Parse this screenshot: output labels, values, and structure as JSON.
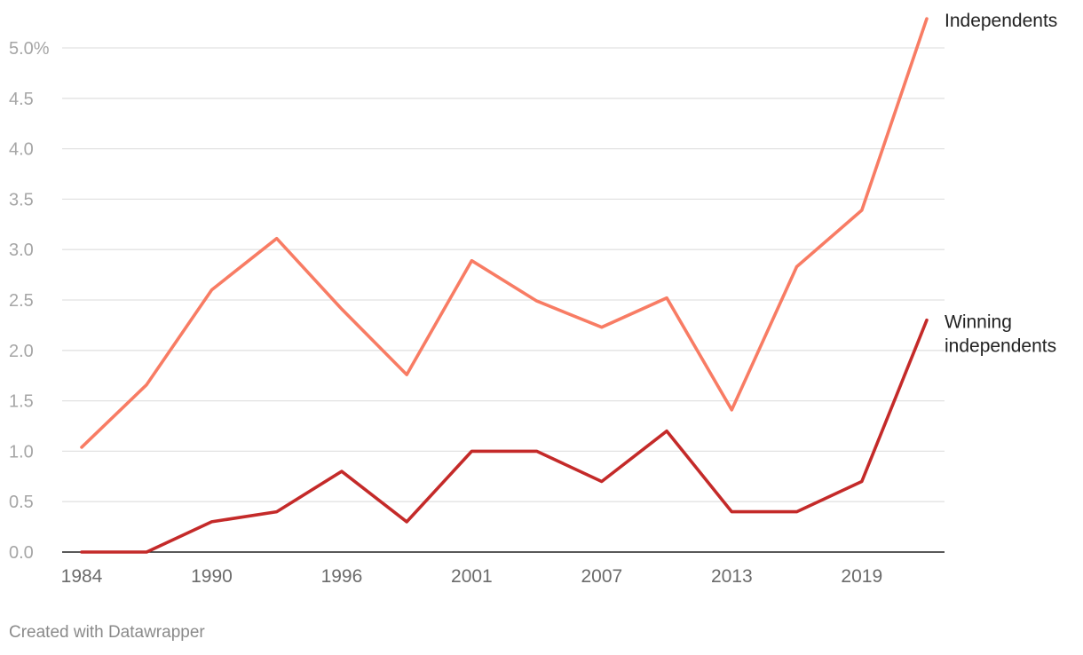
{
  "chart_data": {
    "type": "line",
    "x": [
      1984,
      1987,
      1990,
      1993,
      1996,
      1998,
      2001,
      2004,
      2007,
      2010,
      2013,
      2016,
      2019,
      2022
    ],
    "series": [
      {
        "name": "Independents",
        "label_lines": [
          "Independents"
        ],
        "color": "#f87c64",
        "values": [
          1.04,
          1.66,
          2.6,
          3.11,
          2.41,
          1.76,
          2.89,
          2.49,
          2.23,
          2.52,
          1.41,
          2.83,
          3.39,
          5.29
        ]
      },
      {
        "name": "Winning independents",
        "label_lines": [
          "Winning",
          "independents"
        ],
        "color": "#c42a29",
        "values": [
          0,
          0,
          0.3,
          0.4,
          0.8,
          0.3,
          1.0,
          1.0,
          0.7,
          1.2,
          0.4,
          0.4,
          0.7,
          2.3
        ]
      }
    ],
    "y_ticks": [
      "0.0",
      "0.5",
      "1.0",
      "1.5",
      "2.0",
      "2.5",
      "3.0",
      "3.5",
      "4.0",
      "4.5",
      "5.0%"
    ],
    "y_tick_values": [
      0,
      0.5,
      1.0,
      1.5,
      2.0,
      2.5,
      3.0,
      3.5,
      4.0,
      4.5,
      5.0
    ],
    "x_ticks": [
      "1984",
      "1990",
      "1996",
      "2001",
      "2007",
      "2013",
      "2019"
    ],
    "x_tick_values": [
      1984,
      1990,
      1996,
      2001,
      2007,
      2013,
      2019
    ],
    "ylim": [
      0,
      5.3
    ],
    "grid": true
  },
  "footer": {
    "credit": "Created with Datawrapper"
  }
}
